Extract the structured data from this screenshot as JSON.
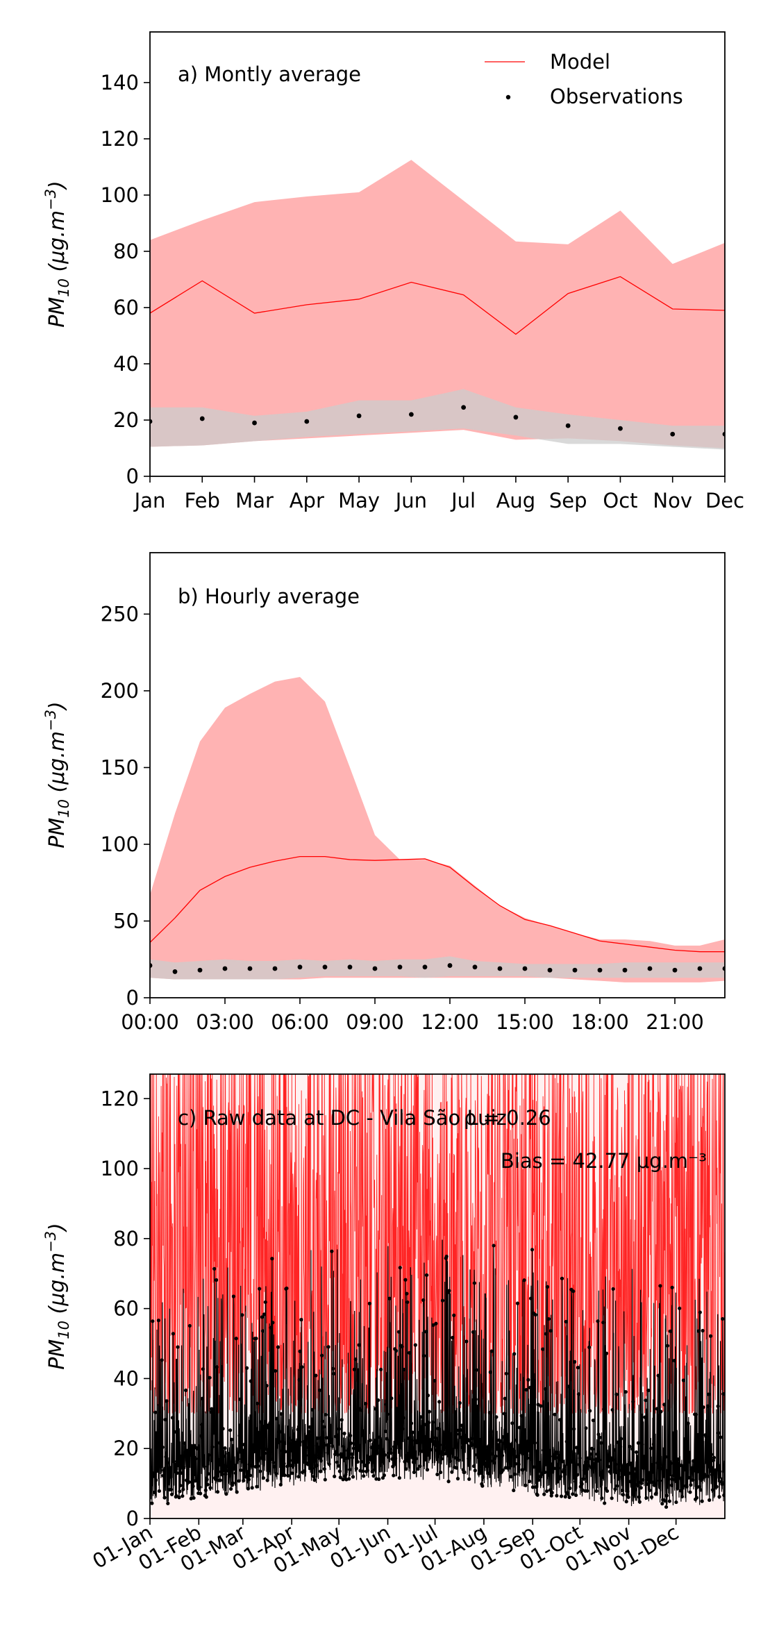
{
  "chart_data": [
    {
      "type": "line",
      "annotation": "a) Montly average",
      "ylabel": "PM10 (μg.m⁻³)",
      "ylim": [
        0,
        158
      ],
      "yticks": [
        0,
        20,
        40,
        60,
        80,
        100,
        120,
        140
      ],
      "categories": [
        "Jan",
        "Feb",
        "Mar",
        "Apr",
        "May",
        "Jun",
        "Jul",
        "Aug",
        "Sep",
        "Oct",
        "Nov",
        "Dec"
      ],
      "legend": {
        "placement": "top-right",
        "entries": [
          "Model",
          "Observations"
        ]
      },
      "series": [
        {
          "name": "Model",
          "kind": "line",
          "color": "#ff0000",
          "values": [
            58,
            69.5,
            58,
            61,
            63,
            69,
            64.5,
            50.5,
            65,
            71,
            59.5,
            59
          ]
        },
        {
          "kind": "band",
          "color": "#ffb3b3",
          "upper": [
            84,
            91,
            97.5,
            99.5,
            101,
            112.5,
            98,
            83.5,
            82.5,
            94.5,
            75.5,
            83
          ],
          "lower": [
            10.5,
            11,
            12.5,
            13.5,
            14.5,
            15.5,
            16.5,
            13,
            13.5,
            12.5,
            11,
            10
          ]
        },
        {
          "name": "Observations",
          "kind": "points",
          "color": "#000000",
          "values": [
            19.5,
            20.5,
            19,
            19.5,
            21.5,
            22,
            24.5,
            21,
            18,
            17,
            15,
            15
          ]
        },
        {
          "kind": "band",
          "color": "#cccccc",
          "upper": [
            24.5,
            24.5,
            21.5,
            23,
            27,
            27,
            31,
            24.5,
            22,
            20,
            18,
            18
          ],
          "lower": [
            10.5,
            11,
            12.5,
            14,
            15,
            16,
            17,
            14.5,
            11.5,
            11.5,
            10.5,
            9.5
          ]
        }
      ]
    },
    {
      "type": "line",
      "annotation": "b) Hourly average",
      "ylabel": "PM10 (μg.m⁻³)",
      "ylim": [
        0,
        290
      ],
      "yticks": [
        0,
        50,
        100,
        150,
        200,
        250
      ],
      "x": [
        0,
        1,
        2,
        3,
        4,
        5,
        6,
        7,
        8,
        9,
        10,
        11,
        12,
        13,
        14,
        15,
        16,
        17,
        18,
        19,
        20,
        21,
        22,
        23
      ],
      "xticks": [
        "00:00",
        "03:00",
        "06:00",
        "09:00",
        "12:00",
        "15:00",
        "18:00",
        "21:00"
      ],
      "series": [
        {
          "name": "Model",
          "kind": "line",
          "color": "#ff0000",
          "values": [
            36,
            52,
            70,
            79,
            85,
            89,
            92,
            92,
            90,
            89.5,
            90,
            90.5,
            85,
            72,
            60,
            51,
            47,
            42,
            37,
            35,
            33,
            31,
            30,
            30
          ]
        },
        {
          "kind": "band",
          "color": "#ffb3b3",
          "upper": [
            67,
            120,
            167,
            189,
            198,
            206,
            209,
            193,
            150,
            106,
            90,
            90,
            86,
            73,
            60,
            52,
            47,
            42,
            38,
            38,
            37,
            34,
            34,
            38
          ],
          "lower": [
            13,
            12,
            12,
            12,
            12,
            12,
            12,
            13,
            13,
            13,
            13,
            13,
            13,
            13,
            13,
            13,
            13,
            12,
            11,
            10,
            10,
            10,
            10,
            11
          ]
        },
        {
          "name": "Observations",
          "kind": "points",
          "color": "#000000",
          "values": [
            21,
            17,
            18,
            19,
            19,
            19,
            20,
            20,
            20,
            19,
            20,
            20,
            21,
            20,
            19,
            19,
            18,
            18,
            18,
            18,
            19,
            18,
            19,
            19
          ]
        },
        {
          "kind": "band",
          "color": "#cccccc",
          "upper": [
            25,
            23,
            24,
            25,
            24,
            24,
            25,
            24,
            25,
            24,
            25,
            25,
            27,
            24,
            23,
            22,
            22,
            22,
            22,
            23,
            23,
            23,
            23,
            23
          ],
          "lower": [
            13,
            12,
            12,
            12,
            12,
            12,
            13,
            14,
            14,
            14,
            14,
            13,
            14,
            14,
            14,
            14,
            13,
            13,
            13,
            13,
            13,
            13,
            13,
            13
          ]
        }
      ]
    },
    {
      "type": "line",
      "annotation": "c) Raw data at DC - Vila São Luiz",
      "stat_r": "ρ = 0.26",
      "stat_bias": "Bias = 42.77 μg.m⁻³",
      "ylabel": "PM10 (μg.m⁻³)",
      "ylim": [
        0,
        127
      ],
      "yticks": [
        0,
        20,
        40,
        60,
        80,
        100,
        120
      ],
      "xticks": [
        "01-Jan",
        "01-Feb",
        "01-Mar",
        "01-Apr",
        "01-May",
        "01-Jun",
        "01-Jul",
        "01-Aug",
        "01-Sep",
        "01-Oct",
        "01-Nov",
        "01-Dec"
      ],
      "xrange_days": [
        0,
        365
      ],
      "series": [
        {
          "name": "Model",
          "kind": "hourly-line",
          "color": "#ff0000",
          "baseline": 30,
          "typical_peak": 70,
          "max": 127
        },
        {
          "name": "Observations",
          "kind": "hourly-points",
          "color": "#000000",
          "baseline": 12,
          "typical_peak": 40,
          "max": 70
        }
      ]
    }
  ]
}
